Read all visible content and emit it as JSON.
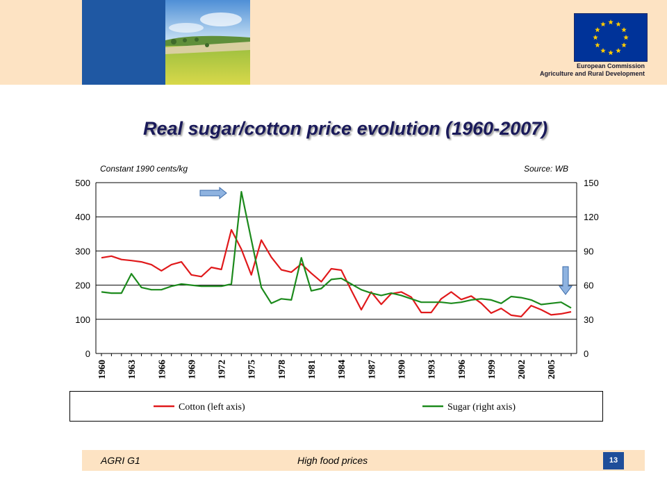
{
  "slide": {
    "title": "Real sugar/cotton price evolution (1960-2007)",
    "header_org_line1": "European Commission",
    "header_org_line2": "Agriculture and Rural Development",
    "footer_left": "AGRI G1",
    "footer_center": "High food prices",
    "page_number": "13"
  },
  "colors": {
    "header_band": "#fde3c3",
    "brand_blue": "#1f58a3",
    "cotton": "#e0191b",
    "sugar": "#1c8a1c",
    "arrow": "#8fb3e0"
  },
  "chart_data": {
    "type": "line",
    "unit_note": "Constant 1990 cents/kg",
    "source_note": "Source: WB",
    "x": [
      1960,
      1961,
      1962,
      1963,
      1964,
      1965,
      1966,
      1967,
      1968,
      1969,
      1970,
      1971,
      1972,
      1973,
      1974,
      1975,
      1976,
      1977,
      1978,
      1979,
      1980,
      1981,
      1982,
      1983,
      1984,
      1985,
      1986,
      1987,
      1988,
      1989,
      1990,
      1991,
      1992,
      1993,
      1994,
      1995,
      1996,
      1997,
      1998,
      1999,
      2000,
      2001,
      2002,
      2003,
      2004,
      2005,
      2006,
      2007
    ],
    "x_tick_labels": [
      "1960",
      "1963",
      "1966",
      "1969",
      "1972",
      "1975",
      "1978",
      "1981",
      "1984",
      "1987",
      "1990",
      "1993",
      "1996",
      "1999",
      "2002",
      "2005"
    ],
    "left_axis": {
      "ylim": [
        0,
        500
      ],
      "ticks": [
        "0",
        "100",
        "200",
        "300",
        "400",
        "500"
      ]
    },
    "right_axis": {
      "ylim": [
        0,
        150
      ],
      "ticks": [
        "0",
        "30",
        "60",
        "90",
        "120",
        "150"
      ]
    },
    "grid": "horizontal",
    "legend_position": "bottom",
    "series": [
      {
        "name": "Cotton (left axis)",
        "axis": "left",
        "values": [
          280,
          285,
          275,
          272,
          268,
          260,
          242,
          260,
          268,
          230,
          225,
          252,
          246,
          362,
          305,
          230,
          332,
          282,
          245,
          238,
          262,
          235,
          210,
          248,
          244,
          185,
          128,
          180,
          144,
          175,
          180,
          165,
          120,
          120,
          160,
          180,
          158,
          168,
          147,
          118,
          132,
          112,
          108,
          140,
          128,
          113,
          116,
          122
        ]
      },
      {
        "name": "Sugar (right axis)",
        "axis": "right",
        "values": [
          54,
          53,
          53,
          70,
          58,
          56,
          56,
          59,
          61,
          60,
          59,
          59,
          59,
          61,
          142,
          100,
          58,
          44,
          48,
          47,
          84,
          55,
          57,
          65,
          66,
          61,
          56,
          53,
          51,
          53,
          51,
          48,
          45,
          45,
          45,
          44,
          45,
          47,
          48,
          47,
          44,
          50,
          49,
          47,
          43,
          44,
          45,
          40
        ]
      }
    ]
  }
}
